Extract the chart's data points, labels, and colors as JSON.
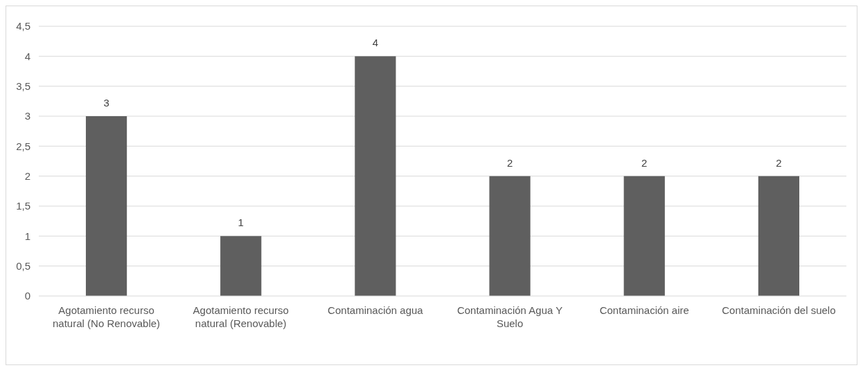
{
  "chart_data": {
    "type": "bar",
    "categories": [
      "Agotamiento recurso natural (No Renovable)",
      "Agotamiento recurso natural (Renovable)",
      "Contaminación agua",
      "Contaminación Agua Y Suelo",
      "Contaminación aire",
      "Contaminación del suelo"
    ],
    "values": [
      3,
      1,
      4,
      2,
      2,
      2
    ],
    "color": "#5f5f5f",
    "ylim": [
      0,
      4.5
    ],
    "yticks": [
      0,
      {
        "value": 0.5,
        "label": "0,5"
      },
      1,
      {
        "value": 1.5,
        "label": "1,5"
      },
      2,
      {
        "value": 2.5,
        "label": "2,5"
      },
      3,
      {
        "value": 3.5,
        "label": "3,5"
      },
      4,
      {
        "value": 4.5,
        "label": "4,5"
      }
    ],
    "grid": "y",
    "data_labels": true
  }
}
